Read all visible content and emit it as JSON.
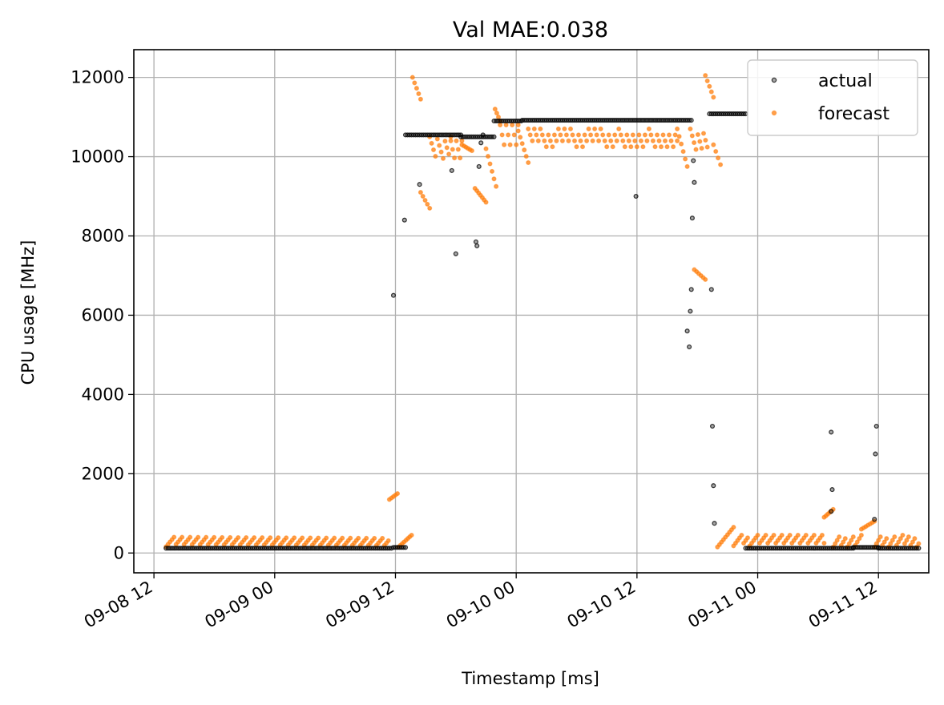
{
  "chart_data": {
    "type": "scatter",
    "title": "Val MAE:0.038",
    "xlabel": "Timestamp [ms]",
    "ylabel": "CPU usage [MHz]",
    "x_tick_labels": [
      "09-08 12",
      "09-09 00",
      "09-09 12",
      "09-10 00",
      "09-10 12",
      "09-11 00",
      "09-11 12"
    ],
    "x_tick_hours": [
      0,
      12,
      24,
      36,
      48,
      60,
      72
    ],
    "xlim_hours": [
      -2,
      77
    ],
    "ylim": [
      -500,
      12700
    ],
    "y_ticks": [
      0,
      2000,
      4000,
      6000,
      8000,
      10000,
      12000
    ],
    "y_tick_labels": [
      "0",
      "2000",
      "4000",
      "6000",
      "8000",
      "10000",
      "12000"
    ],
    "grid": true,
    "legend_position": "top-right",
    "x_unit_note": "x values are hours after 09-08 12:00",
    "series": [
      {
        "name": "actual",
        "color": "#000000",
        "segments": [
          {
            "x_start": 1.2,
            "x_end": 23.6,
            "y_start": 120,
            "y_end": 120
          },
          {
            "x_start": 23.8,
            "x_end": 25.0,
            "y_start": 140,
            "y_end": 140
          },
          {
            "x_start": 25.0,
            "x_end": 30.5,
            "y_start": 10550,
            "y_end": 10550
          },
          {
            "x_start": 30.5,
            "x_end": 33.8,
            "y_start": 10500,
            "y_end": 10500
          },
          {
            "x_start": 33.8,
            "x_end": 36.5,
            "y_start": 10900,
            "y_end": 10900
          },
          {
            "x_start": 36.6,
            "x_end": 53.4,
            "y_start": 10920,
            "y_end": 10920
          },
          {
            "x_start": 55.2,
            "x_end": 58.8,
            "y_start": 11080,
            "y_end": 11080
          },
          {
            "x_start": 58.8,
            "x_end": 69.5,
            "y_start": 120,
            "y_end": 120
          },
          {
            "x_start": 69.5,
            "x_end": 72.0,
            "y_start": 140,
            "y_end": 140
          },
          {
            "x_start": 72.0,
            "x_end": 76.0,
            "y_start": 120,
            "y_end": 120
          }
        ],
        "points": [
          {
            "x": 23.8,
            "y": 6500
          },
          {
            "x": 24.9,
            "y": 8400
          },
          {
            "x": 26.4,
            "y": 9300
          },
          {
            "x": 29.6,
            "y": 9650
          },
          {
            "x": 30.0,
            "y": 7550
          },
          {
            "x": 32.0,
            "y": 7850
          },
          {
            "x": 32.1,
            "y": 7750
          },
          {
            "x": 32.3,
            "y": 9750
          },
          {
            "x": 32.5,
            "y": 10350
          },
          {
            "x": 32.7,
            "y": 10550
          },
          {
            "x": 47.9,
            "y": 9000
          },
          {
            "x": 53.0,
            "y": 5600
          },
          {
            "x": 53.2,
            "y": 5200
          },
          {
            "x": 53.3,
            "y": 6100
          },
          {
            "x": 53.4,
            "y": 6650
          },
          {
            "x": 53.5,
            "y": 8450
          },
          {
            "x": 53.7,
            "y": 9350
          },
          {
            "x": 53.6,
            "y": 9900
          },
          {
            "x": 55.4,
            "y": 6650
          },
          {
            "x": 55.5,
            "y": 3200
          },
          {
            "x": 55.6,
            "y": 1700
          },
          {
            "x": 55.7,
            "y": 750
          },
          {
            "x": 67.3,
            "y": 3050
          },
          {
            "x": 67.4,
            "y": 1600
          },
          {
            "x": 67.3,
            "y": 1050
          },
          {
            "x": 71.8,
            "y": 3200
          },
          {
            "x": 71.7,
            "y": 2500
          },
          {
            "x": 71.6,
            "y": 850
          }
        ]
      },
      {
        "name": "forecast",
        "color": "#ff7f0e",
        "segments": [
          {
            "x_start": 1.2,
            "x_end": 23.3,
            "y_start": 160,
            "y_end": 400,
            "period": 0.8
          },
          {
            "x_start": 23.4,
            "x_end": 24.2,
            "y_start": 1350,
            "y_end": 1500
          },
          {
            "x_start": 24.3,
            "x_end": 25.6,
            "y_start": 150,
            "y_end": 450
          },
          {
            "x_start": 25.7,
            "x_end": 26.5,
            "y_start": 12000,
            "y_end": 11450
          },
          {
            "x_start": 26.5,
            "x_end": 27.4,
            "y_start": 9100,
            "y_end": 8700
          },
          {
            "x_start": 27.4,
            "x_end": 29.5,
            "y_start": 10500,
            "y_end": 9900,
            "period": 0.7
          },
          {
            "x_start": 29.5,
            "x_end": 30.6,
            "y_start": 10400,
            "y_end": 9750,
            "period": 0.55
          },
          {
            "x_start": 30.6,
            "x_end": 31.6,
            "y_start": 10300,
            "y_end": 10150
          },
          {
            "x_start": 31.9,
            "x_end": 33.0,
            "y_start": 9200,
            "y_end": 8850
          },
          {
            "x_start": 33.0,
            "x_end": 34.0,
            "y_start": 10200,
            "y_end": 9250
          },
          {
            "x_start": 33.9,
            "x_end": 34.4,
            "y_start": 11200,
            "y_end": 10900
          },
          {
            "x_start": 34.4,
            "x_end": 36.2,
            "y_start": 10800,
            "y_end": 10050,
            "period": 0.6
          },
          {
            "x_start": 36.2,
            "x_end": 37.2,
            "y_start": 10650,
            "y_end": 9850
          },
          {
            "x_start": 37.2,
            "x_end": 52.0,
            "y_start": 10700,
            "y_end": 10250,
            "period": 0.6
          },
          {
            "x_start": 52.0,
            "x_end": 53.0,
            "y_start": 10700,
            "y_end": 9750
          },
          {
            "x_start": 53.3,
            "x_end": 55.0,
            "y_start": 10700,
            "y_end": 10150,
            "period": 0.6
          },
          {
            "x_start": 53.7,
            "x_end": 54.8,
            "y_start": 7150,
            "y_end": 6900
          },
          {
            "x_start": 54.8,
            "x_end": 55.6,
            "y_start": 12050,
            "y_end": 11500
          },
          {
            "x_start": 55.6,
            "x_end": 56.3,
            "y_start": 10300,
            "y_end": 9800
          },
          {
            "x_start": 56.0,
            "x_end": 57.6,
            "y_start": 150,
            "y_end": 650
          },
          {
            "x_start": 57.6,
            "x_end": 66.6,
            "y_start": 180,
            "y_end": 450,
            "period": 0.8
          },
          {
            "x_start": 66.6,
            "x_end": 67.5,
            "y_start": 900,
            "y_end": 1100
          },
          {
            "x_start": 67.5,
            "x_end": 70.3,
            "y_start": 150,
            "y_end": 450,
            "period": 0.7
          },
          {
            "x_start": 70.3,
            "x_end": 71.6,
            "y_start": 600,
            "y_end": 800
          },
          {
            "x_start": 71.6,
            "x_end": 76.0,
            "y_start": 150,
            "y_end": 450,
            "period": 0.7
          }
        ]
      }
    ]
  }
}
